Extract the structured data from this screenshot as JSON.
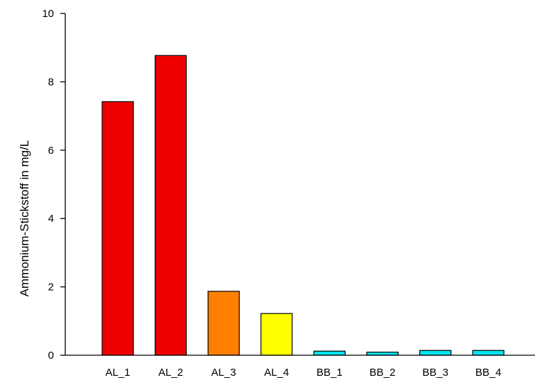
{
  "chart_data": {
    "type": "bar",
    "title": "",
    "xlabel": "",
    "ylabel": "Ammonium-Stickstoff in mg/L",
    "ylim": [
      0,
      10
    ],
    "yticks": [
      0,
      2,
      4,
      6,
      8,
      10
    ],
    "grid": false,
    "legend": "none",
    "categories": [
      "AL_1",
      "AL_2",
      "AL_3",
      "AL_4",
      "BB_1",
      "BB_2",
      "BB_3",
      "BB_4"
    ],
    "values": [
      7.42,
      8.77,
      1.87,
      1.22,
      0.12,
      0.09,
      0.14,
      0.14
    ],
    "colors": [
      "#ee0000",
      "#ee0000",
      "#ff8000",
      "#ffff00",
      "#00e5ee",
      "#00e5ee",
      "#00e5ee",
      "#00e5ee"
    ],
    "edge_color": "#000000"
  }
}
